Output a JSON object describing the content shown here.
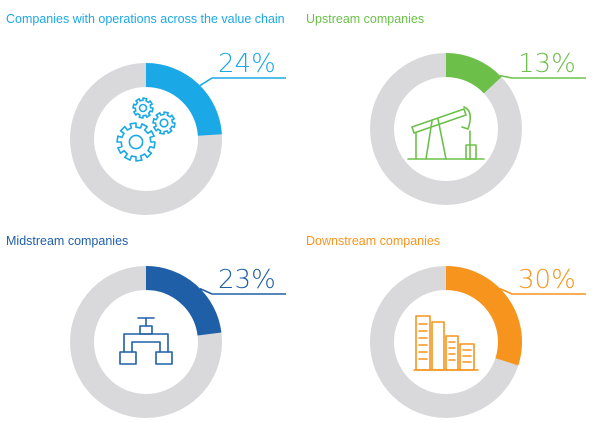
{
  "chart_data": [
    {
      "type": "pie",
      "title": "Companies with operations across the value chain",
      "value": 24,
      "value_label": "24%",
      "color": "#1aa9e6",
      "track_color": "#d9d9db",
      "icon": "gears-icon"
    },
    {
      "type": "pie",
      "title": "Upstream companies",
      "value": 13,
      "value_label": "13%",
      "color": "#6cc04a",
      "track_color": "#d9d9db",
      "icon": "oil-pump-jack-icon"
    },
    {
      "type": "pie",
      "title": "Midstream companies",
      "value": 23,
      "value_label": "23%",
      "color": "#1f5fa8",
      "track_color": "#d9d9db",
      "icon": "pipeline-valve-icon"
    },
    {
      "type": "pie",
      "title": "Downstream companies",
      "value": 30,
      "value_label": "30%",
      "color": "#f7941d",
      "track_color": "#d9d9db",
      "icon": "refinery-icon"
    }
  ]
}
